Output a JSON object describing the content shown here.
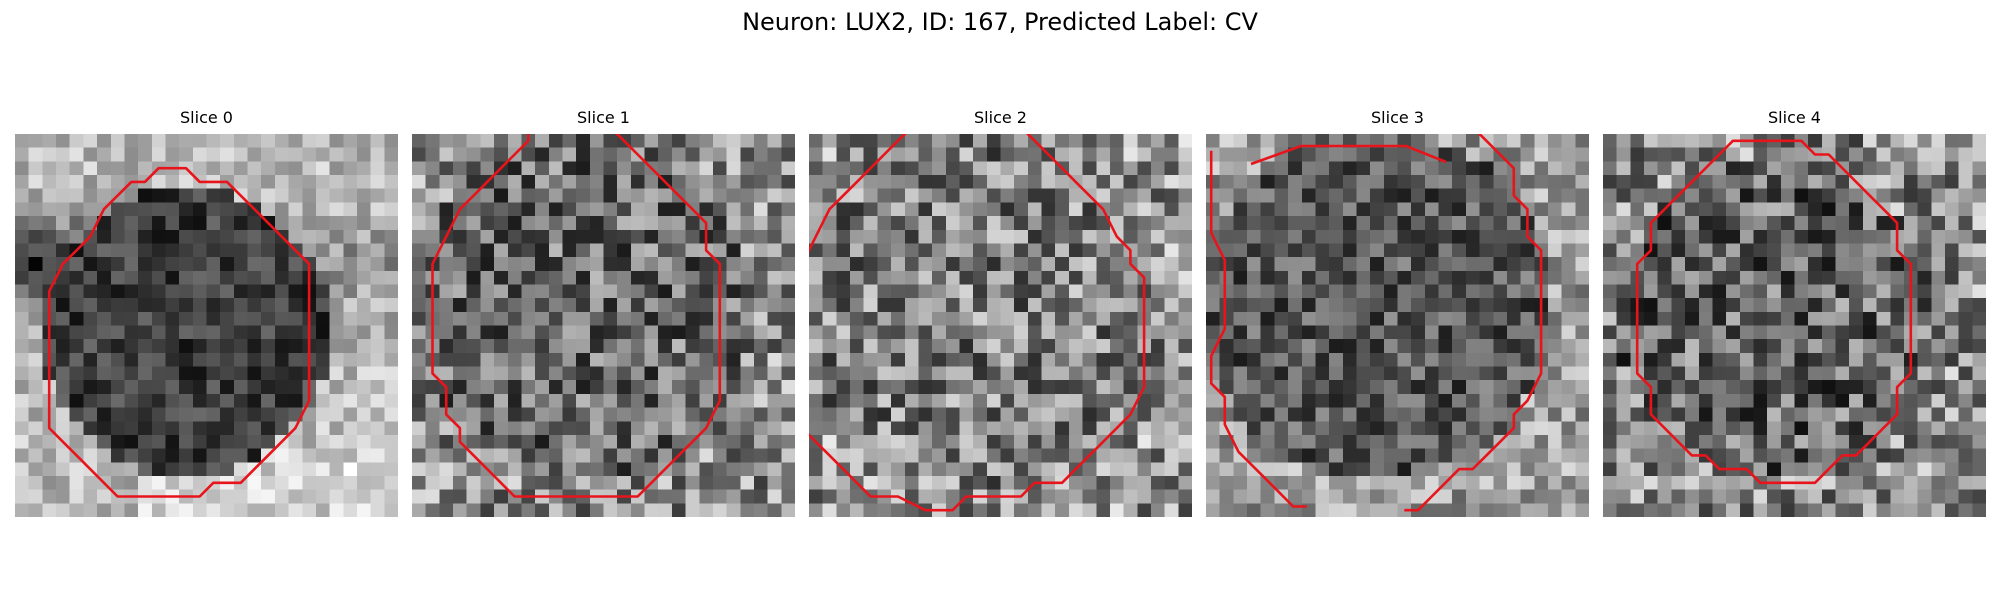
{
  "figure": {
    "title": "Neuron: LUX2, ID: 167, Predicted Label: CV"
  },
  "style": {
    "contour_color": "#e8141c"
  },
  "slices": [
    {
      "title": "Slice 0",
      "contour": [
        [
          10,
          2
        ],
        [
          12,
          2
        ],
        [
          13,
          3
        ],
        [
          15,
          3
        ],
        [
          16,
          4
        ],
        [
          17,
          5
        ],
        [
          18,
          6
        ],
        [
          19,
          7
        ],
        [
          20,
          8
        ],
        [
          21,
          9
        ],
        [
          21,
          11
        ],
        [
          21,
          13
        ],
        [
          21,
          15
        ],
        [
          21,
          17
        ],
        [
          21,
          19
        ],
        [
          20,
          21
        ],
        [
          19,
          22
        ],
        [
          18,
          23
        ],
        [
          17,
          24
        ],
        [
          16,
          25
        ],
        [
          14,
          25
        ],
        [
          13,
          26
        ],
        [
          10,
          26
        ],
        [
          8,
          26
        ],
        [
          7,
          26
        ],
        [
          6,
          25
        ],
        [
          5,
          24
        ],
        [
          4,
          23
        ],
        [
          3,
          22
        ],
        [
          2,
          21
        ],
        [
          2,
          19
        ],
        [
          2,
          17
        ],
        [
          2,
          15
        ],
        [
          2,
          13
        ],
        [
          2,
          11
        ],
        [
          3,
          9
        ],
        [
          4,
          8
        ],
        [
          5,
          7
        ],
        [
          6,
          5
        ],
        [
          7,
          4
        ],
        [
          8,
          3
        ],
        [
          9,
          3
        ]
      ]
    },
    {
      "title": "Slice 1",
      "contour": [
        [
          8,
          -3
        ],
        [
          13,
          -3
        ],
        [
          14,
          -1
        ],
        [
          15,
          0
        ],
        [
          16,
          1
        ],
        [
          17,
          2
        ],
        [
          18,
          3
        ],
        [
          19,
          4
        ],
        [
          20,
          5
        ],
        [
          21,
          6
        ],
        [
          21,
          8
        ],
        [
          22,
          9
        ],
        [
          22,
          11
        ],
        [
          22,
          13
        ],
        [
          22,
          15
        ],
        [
          22,
          17
        ],
        [
          22,
          19
        ],
        [
          21,
          21
        ],
        [
          20,
          22
        ],
        [
          19,
          23
        ],
        [
          18,
          24
        ],
        [
          17,
          25
        ],
        [
          16,
          26
        ],
        [
          15,
          26
        ],
        [
          13,
          26
        ],
        [
          10,
          26
        ],
        [
          8,
          26
        ],
        [
          7,
          26
        ],
        [
          6,
          25
        ],
        [
          5,
          24
        ],
        [
          4,
          23
        ],
        [
          3,
          22
        ],
        [
          3,
          21
        ],
        [
          2,
          20
        ],
        [
          2,
          18
        ],
        [
          1,
          17
        ],
        [
          1,
          15
        ],
        [
          1,
          13
        ],
        [
          1,
          11
        ],
        [
          1,
          9
        ],
        [
          2,
          7
        ],
        [
          3,
          5
        ],
        [
          4,
          4
        ],
        [
          5,
          3
        ],
        [
          6,
          2
        ],
        [
          7,
          1
        ],
        [
          8,
          0
        ]
      ]
    },
    {
      "title": "Slice 2",
      "contour": [
        [
          10,
          -2
        ],
        [
          13,
          -2
        ],
        [
          14,
          -1
        ],
        [
          15,
          -1
        ],
        [
          16,
          0
        ],
        [
          17,
          1
        ],
        [
          18,
          2
        ],
        [
          19,
          3
        ],
        [
          20,
          4
        ],
        [
          21,
          5
        ],
        [
          22,
          7
        ],
        [
          23,
          8
        ],
        [
          23,
          9
        ],
        [
          24,
          10
        ],
        [
          24,
          12
        ],
        [
          24,
          14
        ],
        [
          24,
          16
        ],
        [
          24,
          18
        ],
        [
          23,
          20
        ],
        [
          22,
          21
        ],
        [
          21,
          22
        ],
        [
          20,
          23
        ],
        [
          19,
          24
        ],
        [
          18,
          25
        ],
        [
          16,
          25
        ],
        [
          15,
          26
        ],
        [
          14,
          26
        ],
        [
          11,
          26
        ],
        [
          10,
          27
        ],
        [
          8,
          27
        ],
        [
          6,
          26
        ],
        [
          4,
          26
        ],
        [
          3,
          25
        ],
        [
          2,
          24
        ],
        [
          1,
          23
        ],
        [
          0,
          22
        ],
        [
          -1,
          21
        ],
        [
          -1,
          19
        ],
        [
          -1,
          17
        ],
        [
          -1,
          15
        ],
        [
          -1,
          13
        ],
        [
          -1,
          11
        ],
        [
          -1,
          9
        ],
        [
          0,
          7
        ],
        [
          1,
          5
        ],
        [
          2,
          4
        ],
        [
          3,
          3
        ],
        [
          4,
          2
        ],
        [
          5,
          1
        ],
        [
          6,
          0
        ],
        [
          7,
          -1
        ],
        [
          9,
          -1
        ]
      ]
    },
    {
      "title": "Slice 3",
      "contour": [
        [
          13,
          -4
        ],
        [
          16,
          -4
        ],
        [
          17,
          -3
        ],
        [
          18,
          -2
        ],
        [
          19,
          -1
        ],
        [
          20,
          0
        ],
        [
          21,
          1
        ],
        [
          22,
          2
        ],
        [
          22,
          4
        ],
        [
          23,
          5
        ],
        [
          23,
          7
        ],
        [
          24,
          8
        ],
        [
          24,
          10
        ],
        [
          24,
          12
        ],
        [
          24,
          14
        ],
        [
          24,
          16
        ],
        [
          24,
          17
        ],
        [
          23,
          19
        ],
        [
          22,
          20
        ],
        [
          22,
          21
        ],
        [
          21,
          22
        ],
        [
          20,
          23
        ],
        [
          19,
          24
        ],
        [
          18,
          24
        ],
        [
          17,
          25
        ],
        [
          16,
          26
        ],
        [
          15,
          27
        ],
        [
          14,
          27
        ]
      ]
    },
    {
      "title": "Slice 4",
      "contour": [
        [
          9,
          0
        ],
        [
          14,
          0
        ],
        [
          15,
          1
        ],
        [
          16,
          1
        ],
        [
          17,
          2
        ],
        [
          18,
          3
        ],
        [
          19,
          4
        ],
        [
          20,
          5
        ],
        [
          21,
          6
        ],
        [
          21,
          8
        ],
        [
          22,
          9
        ],
        [
          22,
          11
        ],
        [
          22,
          13
        ],
        [
          22,
          15
        ],
        [
          22,
          17
        ],
        [
          21,
          18
        ],
        [
          21,
          20
        ],
        [
          20,
          21
        ],
        [
          19,
          22
        ],
        [
          18,
          23
        ],
        [
          17,
          23
        ],
        [
          16,
          24
        ],
        [
          15,
          25
        ],
        [
          13,
          25
        ],
        [
          11,
          25
        ],
        [
          10,
          24
        ],
        [
          8,
          24
        ],
        [
          7,
          23
        ],
        [
          6,
          23
        ],
        [
          5,
          22
        ],
        [
          4,
          21
        ],
        [
          3,
          20
        ],
        [
          3,
          18
        ],
        [
          2,
          17
        ],
        [
          2,
          15
        ],
        [
          2,
          13
        ],
        [
          2,
          11
        ],
        [
          2,
          9
        ],
        [
          3,
          8
        ],
        [
          3,
          6
        ],
        [
          4,
          5
        ],
        [
          5,
          4
        ],
        [
          6,
          3
        ],
        [
          7,
          2
        ],
        [
          8,
          1
        ]
      ]
    }
  ]
}
